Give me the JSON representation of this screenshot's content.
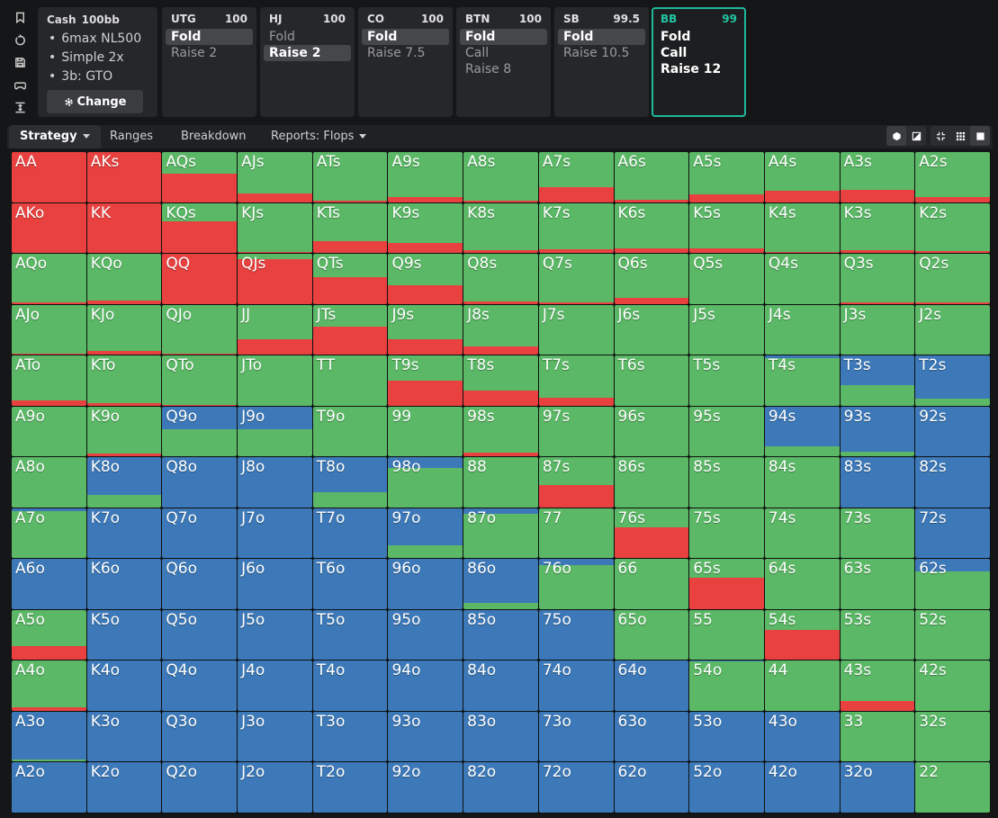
{
  "toolbar_icons": [
    "bookmark-icon",
    "reset-icon",
    "save-icon",
    "gamepad-icon",
    "expand-icon"
  ],
  "cash": {
    "title": "Cash",
    "stack": "100bb",
    "items": [
      "6max NL500",
      "Simple 2x",
      "3b: GTO"
    ],
    "change_label": "Change"
  },
  "positions": [
    {
      "name": "UTG",
      "stack": "100",
      "actions": [
        "Fold",
        "Raise 2"
      ],
      "selected": 0
    },
    {
      "name": "HJ",
      "stack": "100",
      "actions": [
        "Fold",
        "Raise 2"
      ],
      "selected": 1
    },
    {
      "name": "CO",
      "stack": "100",
      "actions": [
        "Fold",
        "Raise 7.5"
      ],
      "selected": 0
    },
    {
      "name": "BTN",
      "stack": "100",
      "actions": [
        "Fold",
        "Call",
        "Raise 8"
      ],
      "selected": 0
    },
    {
      "name": "SB",
      "stack": "99.5",
      "actions": [
        "Fold",
        "Raise 10.5"
      ],
      "selected": 0
    },
    {
      "name": "BB",
      "stack": "99",
      "actions": [
        "Fold",
        "Call",
        "Raise 12"
      ],
      "active": true
    }
  ],
  "tabs": [
    {
      "label": "Strategy",
      "active": true,
      "dropdown": true
    },
    {
      "label": "Ranges"
    },
    {
      "label": "Breakdown"
    },
    {
      "label": "Reports: Flops",
      "dropdown": true
    }
  ],
  "view_icons": [
    "cube-icon",
    "contrast-icon",
    "compress-icon",
    "grid-small-icon",
    "square-icon"
  ],
  "colors": {
    "raise": "#e8413f",
    "call": "#5bb866",
    "fold": "#3d79b8",
    "accent": "#1fb89a"
  },
  "matrix": {
    "ranks": [
      "A",
      "K",
      "Q",
      "J",
      "T",
      "9",
      "8",
      "7",
      "6",
      "5",
      "4",
      "3",
      "2"
    ],
    "legend": "Each cell: raise fraction, call fraction, fold fraction (remainder)",
    "rows": [
      [
        [
          "AA",
          1,
          0
        ],
        [
          "AKs",
          1,
          0
        ],
        [
          "AQs",
          0.56,
          0.44
        ],
        [
          "AJs",
          0.18,
          0.82
        ],
        [
          "ATs",
          0.02,
          0.98
        ],
        [
          "A9s",
          0.1,
          0.9
        ],
        [
          "A8s",
          0.03,
          0.97
        ],
        [
          "A7s",
          0.3,
          0.7
        ],
        [
          "A6s",
          0.05,
          0.95
        ],
        [
          "A5s",
          0.16,
          0.84
        ],
        [
          "A4s",
          0.22,
          0.78
        ],
        [
          "A3s",
          0.25,
          0.75
        ],
        [
          "A2s",
          0.1,
          0.9
        ]
      ],
      [
        [
          "AKo",
          1,
          0
        ],
        [
          "KK",
          1,
          0
        ],
        [
          "KQs",
          0.63,
          0.37
        ],
        [
          "KJs",
          0.02,
          0.98
        ],
        [
          "KTs",
          0.24,
          0.76
        ],
        [
          "K9s",
          0.2,
          0.8
        ],
        [
          "K8s",
          0.05,
          0.95
        ],
        [
          "K7s",
          0.08,
          0.92
        ],
        [
          "K6s",
          0.1,
          0.9
        ],
        [
          "K5s",
          0.1,
          0.9
        ],
        [
          "K4s",
          0.02,
          0.98
        ],
        [
          "K3s",
          0.05,
          0.95
        ],
        [
          "K2s",
          0.04,
          0.96
        ]
      ],
      [
        [
          "AQo",
          0.02,
          0.98
        ],
        [
          "KQo",
          0.07,
          0.93
        ],
        [
          "QQ",
          1,
          0
        ],
        [
          "QJs",
          0.9,
          0.1
        ],
        [
          "QTs",
          0.53,
          0.47
        ],
        [
          "Q9s",
          0.37,
          0.63
        ],
        [
          "Q8s",
          0.05,
          0.95
        ],
        [
          "Q7s",
          0.02,
          0.98
        ],
        [
          "Q6s",
          0.12,
          0.88
        ],
        [
          "Q5s",
          0,
          1
        ],
        [
          "Q4s",
          0,
          1
        ],
        [
          "Q3s",
          0.02,
          0.98
        ],
        [
          "Q2s",
          0.02,
          0.98
        ]
      ],
      [
        [
          "AJo",
          0.02,
          0.98
        ],
        [
          "KJo",
          0.07,
          0.93
        ],
        [
          "QJo",
          0.02,
          0.98
        ],
        [
          "JJ",
          0.3,
          0.7
        ],
        [
          "JTs",
          0.56,
          0.44
        ],
        [
          "J9s",
          0.3,
          0.7
        ],
        [
          "J8s",
          0.16,
          0.84
        ],
        [
          "J7s",
          0,
          1
        ],
        [
          "J6s",
          0,
          1
        ],
        [
          "J5s",
          0,
          1
        ],
        [
          "J4s",
          0,
          1
        ],
        [
          "J3s",
          0,
          1
        ],
        [
          "J2s",
          0,
          1
        ]
      ],
      [
        [
          "ATo",
          0.1,
          0.9
        ],
        [
          "KTo",
          0.05,
          0.95
        ],
        [
          "QTo",
          0.02,
          0.98
        ],
        [
          "JTo",
          0,
          1
        ],
        [
          "TT",
          0,
          1
        ],
        [
          "T9s",
          0.5,
          0.5
        ],
        [
          "T8s",
          0.3,
          0.7
        ],
        [
          "T7s",
          0.16,
          0.84
        ],
        [
          "T6s",
          0,
          1
        ],
        [
          "T5s",
          0,
          1
        ],
        [
          "T4s",
          0,
          0.95
        ],
        [
          "T3s",
          0,
          0.4
        ],
        [
          "T2s",
          0,
          0.14
        ]
      ],
      [
        [
          "A9o",
          0,
          1
        ],
        [
          "K9o",
          0.05,
          0.95
        ],
        [
          "Q9o",
          0,
          0.55
        ],
        [
          "J9o",
          0,
          0.55
        ],
        [
          "T9o",
          0,
          1
        ],
        [
          "99",
          0,
          1
        ],
        [
          "98s",
          0.07,
          0.93
        ],
        [
          "97s",
          0,
          1
        ],
        [
          "96s",
          0,
          1
        ],
        [
          "95s",
          0,
          1
        ],
        [
          "94s",
          0,
          0.2
        ],
        [
          "93s",
          0,
          0.1
        ],
        [
          "92s",
          0,
          0
        ]
      ],
      [
        [
          "A8o",
          0,
          1
        ],
        [
          "K8o",
          0,
          0.25
        ],
        [
          "Q8o",
          0,
          0
        ],
        [
          "J8o",
          0,
          0
        ],
        [
          "T8o",
          0,
          0.3
        ],
        [
          "98o",
          0,
          0.78
        ],
        [
          "88",
          0,
          1
        ],
        [
          "87s",
          0.45,
          0.55
        ],
        [
          "86s",
          0,
          1
        ],
        [
          "85s",
          0,
          1
        ],
        [
          "84s",
          0,
          1
        ],
        [
          "83s",
          0,
          0
        ],
        [
          "82s",
          0,
          0
        ]
      ],
      [
        [
          "A7o",
          0,
          0.95
        ],
        [
          "K7o",
          0,
          0
        ],
        [
          "Q7o",
          0,
          0
        ],
        [
          "J7o",
          0,
          0
        ],
        [
          "T7o",
          0,
          0
        ],
        [
          "97o",
          0,
          0.25
        ],
        [
          "87o",
          0,
          0.88
        ],
        [
          "77",
          0,
          1
        ],
        [
          "76s",
          0.62,
          0.38
        ],
        [
          "75s",
          0,
          1
        ],
        [
          "74s",
          0,
          1
        ],
        [
          "73s",
          0,
          1
        ],
        [
          "72s",
          0,
          0
        ]
      ],
      [
        [
          "A6o",
          0,
          0
        ],
        [
          "K6o",
          0,
          0
        ],
        [
          "Q6o",
          0,
          0
        ],
        [
          "J6o",
          0,
          0
        ],
        [
          "T6o",
          0,
          0
        ],
        [
          "96o",
          0,
          0
        ],
        [
          "86o",
          0,
          0.12
        ],
        [
          "76o",
          0,
          0.88
        ],
        [
          "66",
          0,
          1
        ],
        [
          "65s",
          0.63,
          0.37
        ],
        [
          "64s",
          0,
          1
        ],
        [
          "63s",
          0,
          1
        ],
        [
          "62s",
          0,
          0.75
        ]
      ],
      [
        [
          "A5o",
          0.28,
          0.72
        ],
        [
          "K5o",
          0,
          0
        ],
        [
          "Q5o",
          0,
          0
        ],
        [
          "J5o",
          0,
          0
        ],
        [
          "T5o",
          0,
          0
        ],
        [
          "95o",
          0,
          0
        ],
        [
          "85o",
          0,
          0
        ],
        [
          "75o",
          0,
          0
        ],
        [
          "65o",
          0,
          1
        ],
        [
          "55",
          0,
          1
        ],
        [
          "54s",
          0.6,
          0.4
        ],
        [
          "53s",
          0,
          1
        ],
        [
          "52s",
          0,
          1
        ]
      ],
      [
        [
          "A4o",
          0.07,
          0.93
        ],
        [
          "K4o",
          0,
          0
        ],
        [
          "Q4o",
          0,
          0
        ],
        [
          "J4o",
          0,
          0
        ],
        [
          "T4o",
          0,
          0
        ],
        [
          "94o",
          0,
          0
        ],
        [
          "84o",
          0,
          0
        ],
        [
          "74o",
          0,
          0
        ],
        [
          "64o",
          0,
          0
        ],
        [
          "54o",
          0,
          0.98
        ],
        [
          "44",
          0,
          1
        ],
        [
          "43s",
          0.2,
          0.8
        ],
        [
          "42s",
          0,
          1
        ]
      ],
      [
        [
          "A3o",
          0,
          0.05
        ],
        [
          "K3o",
          0,
          0
        ],
        [
          "Q3o",
          0,
          0
        ],
        [
          "J3o",
          0,
          0
        ],
        [
          "T3o",
          0,
          0
        ],
        [
          "93o",
          0,
          0
        ],
        [
          "83o",
          0,
          0
        ],
        [
          "73o",
          0,
          0
        ],
        [
          "63o",
          0,
          0
        ],
        [
          "53o",
          0,
          0
        ],
        [
          "43o",
          0,
          0
        ],
        [
          "33",
          0,
          1
        ],
        [
          "32s",
          0,
          1
        ]
      ],
      [
        [
          "A2o",
          0,
          0
        ],
        [
          "K2o",
          0,
          0
        ],
        [
          "Q2o",
          0,
          0
        ],
        [
          "J2o",
          0,
          0
        ],
        [
          "T2o",
          0,
          0
        ],
        [
          "92o",
          0,
          0
        ],
        [
          "82o",
          0,
          0
        ],
        [
          "72o",
          0,
          0
        ],
        [
          "62o",
          0,
          0
        ],
        [
          "52o",
          0,
          0
        ],
        [
          "42o",
          0,
          0
        ],
        [
          "32o",
          0,
          0
        ],
        [
          "22",
          0,
          1
        ]
      ]
    ]
  }
}
